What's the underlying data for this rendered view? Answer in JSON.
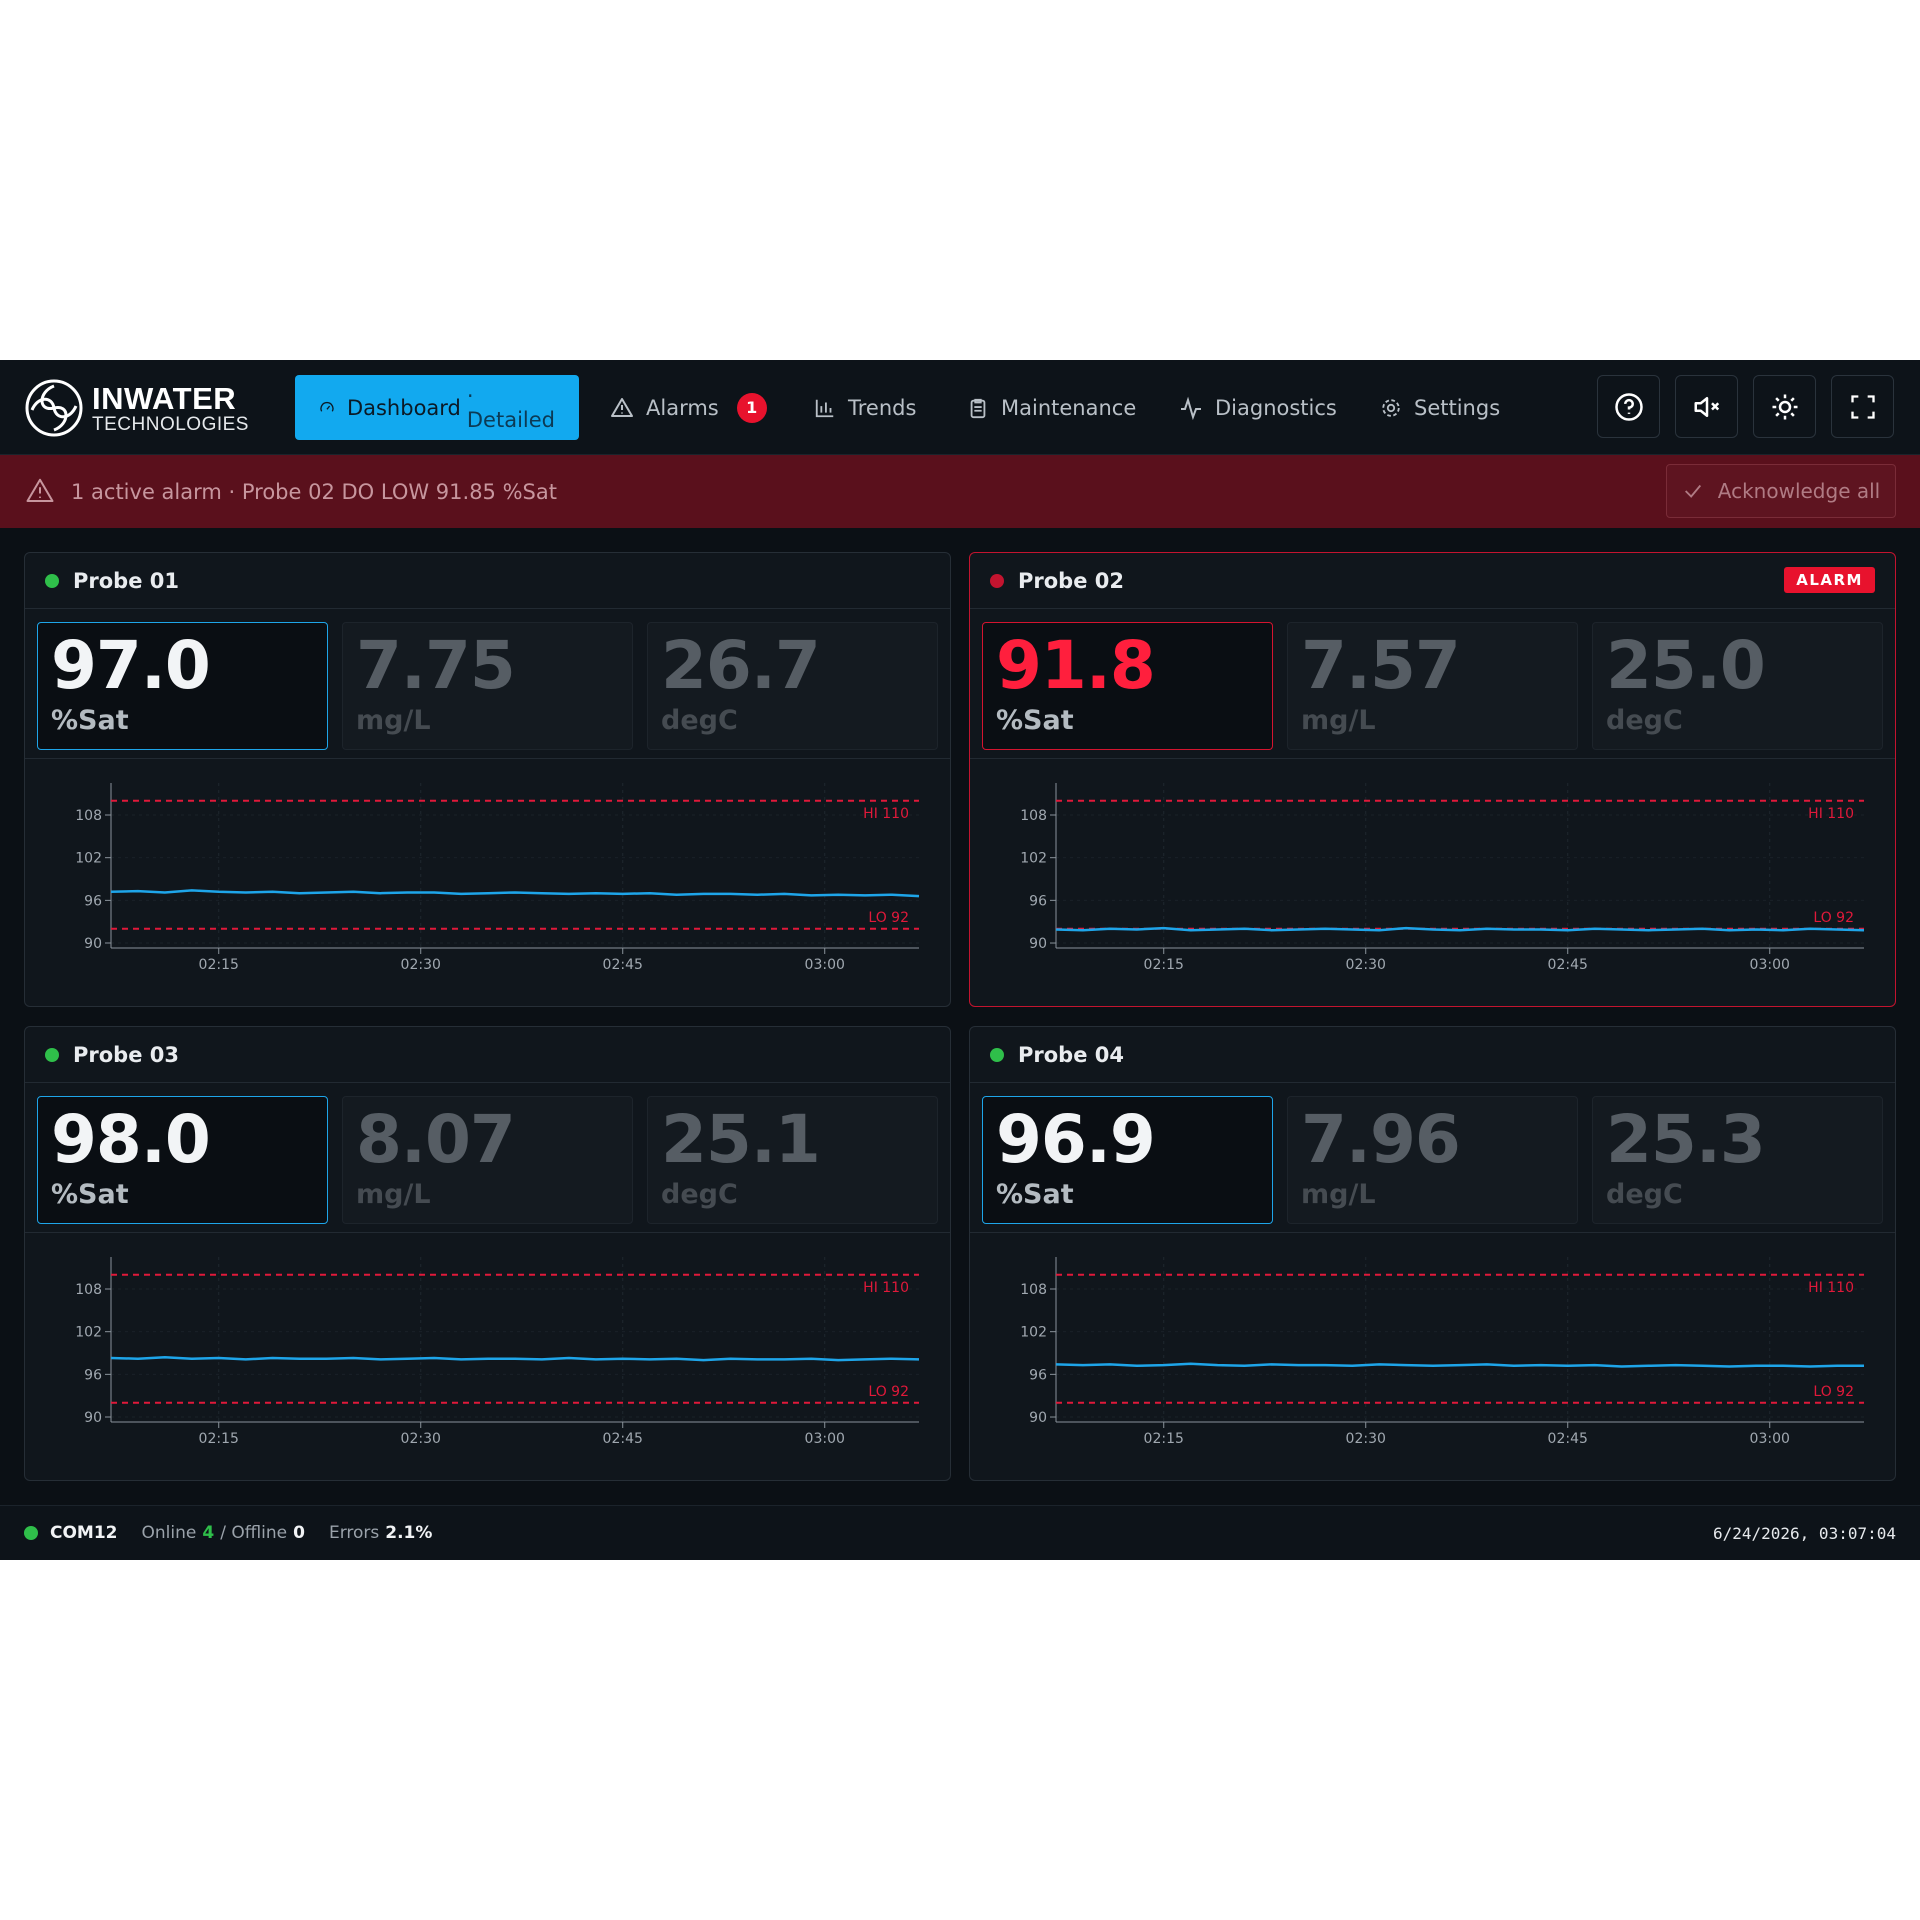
{
  "header": {
    "brand": "INWATER",
    "brand_sub": "TECHNOLOGIES",
    "nav": [
      {
        "label": "Dashboard",
        "suffix": "· Detailed"
      },
      {
        "label": "Alarms",
        "badge": "1"
      },
      {
        "label": "Trends"
      },
      {
        "label": "Maintenance"
      },
      {
        "label": "Diagnostics"
      },
      {
        "label": "Settings"
      }
    ]
  },
  "alarm_banner": {
    "text": "1 active alarm · Probe 02 DO LOW 91.85 %Sat",
    "button": "Acknowledge all"
  },
  "trend_axes": {
    "x": [
      "02:07",
      "02:09",
      "02:11",
      "02:13",
      "02:15",
      "02:17",
      "02:19",
      "02:21",
      "02:23",
      "02:25",
      "02:27",
      "02:29",
      "02:31",
      "02:33",
      "02:35",
      "02:37",
      "02:39",
      "02:41",
      "02:43",
      "02:45",
      "02:47",
      "02:49",
      "02:51",
      "02:53",
      "02:55",
      "02:57",
      "02:59",
      "03:01",
      "03:03",
      "03:05",
      "03:07"
    ],
    "xlim": [
      "02:07",
      "03:07"
    ],
    "xticks": [
      "02:15",
      "02:30",
      "02:45",
      "03:00"
    ],
    "ylim": [
      89.3,
      112.5
    ],
    "yticks": [
      90,
      96,
      102,
      108
    ],
    "thresholds": [
      {
        "label": "HI 110",
        "value": 110
      },
      {
        "label": "LO 92",
        "value": 92
      }
    ],
    "line_color": "#1ea5e9",
    "threshold_color": "#e0193a"
  },
  "probes": [
    {
      "name": "Probe 01",
      "readings": [
        {
          "value": "97.0",
          "unit": "%Sat"
        },
        {
          "value": "7.75",
          "unit": "mg/L"
        },
        {
          "value": "26.7",
          "unit": "degC"
        }
      ],
      "trend": {
        "values": [
          97.2,
          97.3,
          97.1,
          97.4,
          97.2,
          97.1,
          97.2,
          97.0,
          97.1,
          97.2,
          97.0,
          97.1,
          97.1,
          96.9,
          97.0,
          97.1,
          97.0,
          96.9,
          97.0,
          96.9,
          97.0,
          96.8,
          96.9,
          96.9,
          96.8,
          96.9,
          96.7,
          96.8,
          96.7,
          96.8,
          96.6
        ]
      }
    },
    {
      "name": "Probe 02",
      "alarm_badge": "ALARM",
      "readings": [
        {
          "value": "91.8",
          "unit": "%Sat"
        },
        {
          "value": "7.57",
          "unit": "mg/L"
        },
        {
          "value": "25.0",
          "unit": "degC"
        }
      ],
      "trend": {
        "values": [
          91.9,
          91.8,
          92.0,
          91.9,
          92.1,
          91.8,
          91.9,
          92.0,
          91.8,
          91.9,
          92.0,
          91.9,
          91.8,
          92.1,
          91.9,
          91.8,
          92.0,
          91.9,
          91.9,
          91.8,
          92.0,
          91.9,
          91.8,
          91.9,
          92.0,
          91.8,
          91.9,
          91.8,
          92.0,
          91.9,
          91.8
        ]
      }
    },
    {
      "name": "Probe 03",
      "readings": [
        {
          "value": "98.0",
          "unit": "%Sat"
        },
        {
          "value": "8.07",
          "unit": "mg/L"
        },
        {
          "value": "25.1",
          "unit": "degC"
        }
      ],
      "trend": {
        "values": [
          98.3,
          98.2,
          98.4,
          98.2,
          98.3,
          98.1,
          98.3,
          98.2,
          98.2,
          98.3,
          98.1,
          98.2,
          98.3,
          98.1,
          98.2,
          98.2,
          98.1,
          98.3,
          98.1,
          98.2,
          98.1,
          98.2,
          98.0,
          98.2,
          98.1,
          98.1,
          98.2,
          98.0,
          98.1,
          98.2,
          98.1
        ]
      }
    },
    {
      "name": "Probe 04",
      "readings": [
        {
          "value": "96.9",
          "unit": "%Sat"
        },
        {
          "value": "7.96",
          "unit": "mg/L"
        },
        {
          "value": "25.3",
          "unit": "degC"
        }
      ],
      "trend": {
        "values": [
          97.4,
          97.3,
          97.4,
          97.2,
          97.3,
          97.5,
          97.3,
          97.2,
          97.4,
          97.3,
          97.3,
          97.2,
          97.4,
          97.3,
          97.2,
          97.3,
          97.4,
          97.2,
          97.3,
          97.2,
          97.3,
          97.1,
          97.2,
          97.3,
          97.2,
          97.1,
          97.2,
          97.2,
          97.1,
          97.2,
          97.2
        ]
      }
    }
  ],
  "footer": {
    "port": "COM12",
    "online_label": "Online",
    "online": "4",
    "offline_label": "/ Offline",
    "offline": "0",
    "errors_label": "Errors",
    "errors": "2.1%",
    "timestamp": "6/24/2026, 03:07:04"
  }
}
